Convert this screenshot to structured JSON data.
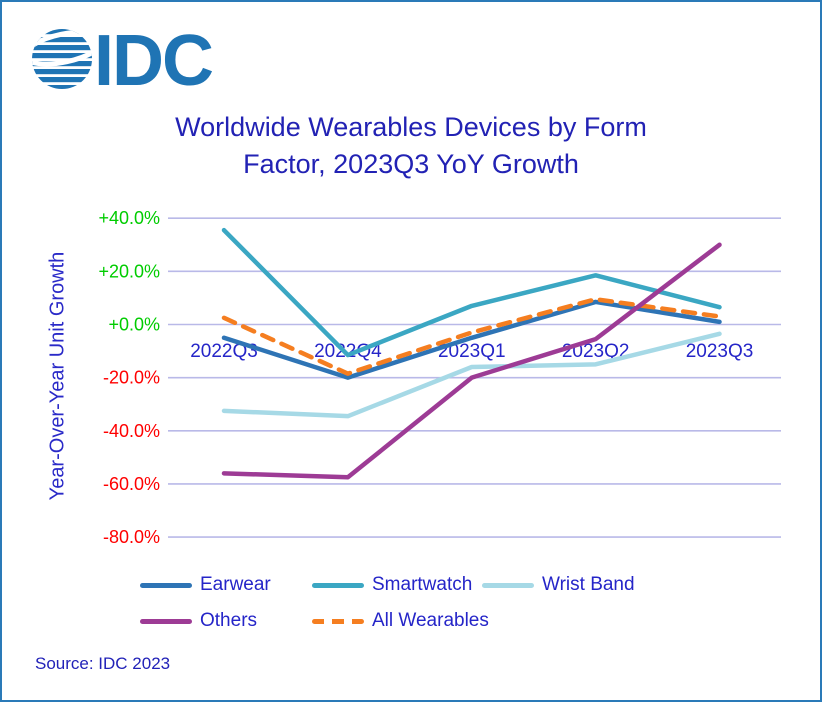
{
  "logo": {
    "text": "IDC"
  },
  "title_lines": {
    "line1": "Worldwide Wearables Devices by Form",
    "line2": "Factor, 2023Q3 YoY Growth"
  },
  "source": {
    "text": "Source: IDC 2023"
  },
  "chart_data": {
    "type": "line",
    "title": "Worldwide Wearables Devices by Form Factor, 2023Q3 YoY Growth",
    "xlabel": "",
    "ylabel": "Year-Over-Year Unit Growth",
    "categories": [
      "2022Q3",
      "2022Q4",
      "2023Q1",
      "2023Q2",
      "2023Q3"
    ],
    "series": [
      {
        "name": "Earwear",
        "color": "#2E74B5",
        "line_style": "solid",
        "values": [
          -5.0,
          -20.0,
          -5.0,
          8.5,
          1.0
        ]
      },
      {
        "name": "Smartwatch",
        "color": "#3BA7C3",
        "line_style": "solid",
        "values": [
          35.5,
          -11.5,
          7.0,
          18.5,
          6.5
        ]
      },
      {
        "name": "Wrist Band",
        "color": "#A6D9E6",
        "line_style": "solid",
        "values": [
          -32.5,
          -34.5,
          -16.0,
          -15.0,
          -3.5
        ]
      },
      {
        "name": "Others",
        "color": "#9D3B95",
        "line_style": "solid",
        "values": [
          -56.0,
          -57.5,
          -20.0,
          -5.5,
          30.0
        ]
      },
      {
        "name": "All Wearables",
        "color": "#F57E20",
        "line_style": "dashed",
        "values": [
          2.5,
          -18.5,
          -3.0,
          9.5,
          3.0
        ]
      }
    ],
    "ylim": [
      -80,
      40
    ],
    "y_ticks": [
      40,
      20,
      0,
      -20,
      -40,
      -60,
      -80
    ],
    "y_tick_labels": [
      "+40.0%",
      "+20.0%",
      "+0.0%",
      "-20.0%",
      "-40.0%",
      "-60.0%",
      "-80.0%"
    ],
    "grid": true,
    "legend_position": "bottom",
    "colors": {
      "positive_tick": "#00CC00",
      "negative_tick": "#FF0000",
      "gridline": "#B9B9E8",
      "x_label_text": "#2525C8",
      "title_text": "#2222B4",
      "logo_blue": "#1F74B4",
      "border": "#2A7AB8"
    }
  }
}
